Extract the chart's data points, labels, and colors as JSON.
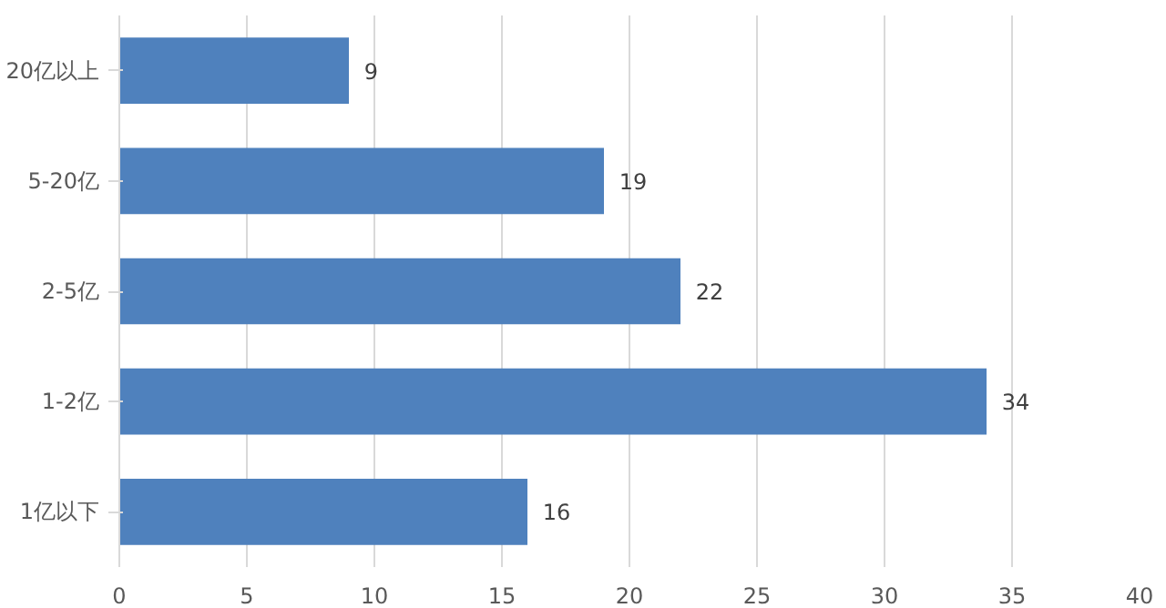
{
  "chart_data": {
    "type": "bar",
    "orientation": "horizontal",
    "categories": [
      "20亿以上",
      "5-20亿",
      "2-5亿",
      "1-2亿",
      "1亿以下"
    ],
    "values": [
      9,
      19,
      22,
      34,
      16
    ],
    "color": "#4f81bd",
    "xlim": [
      0,
      40
    ],
    "xticks": [
      0,
      5,
      10,
      15,
      20,
      25,
      30,
      35,
      40
    ],
    "grid": "x",
    "data_labels": true
  }
}
